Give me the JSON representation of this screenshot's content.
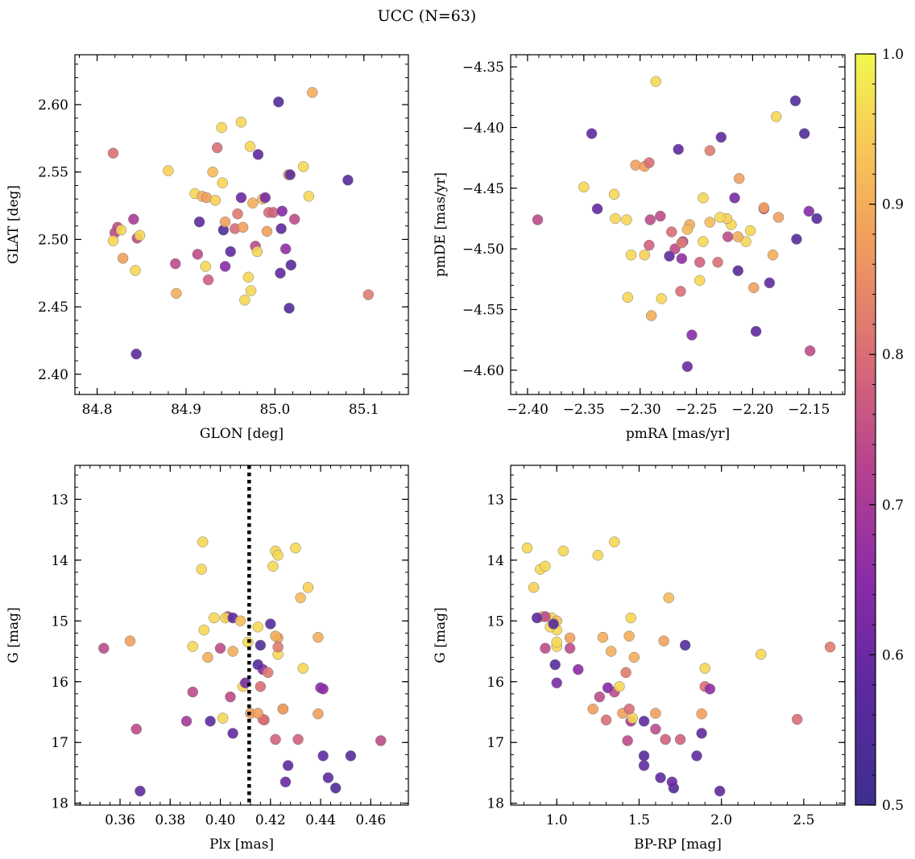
{
  "suptitle": "UCC (N=63)",
  "colorbar": {
    "cmap": "plasma",
    "range": [
      0.5,
      1.0
    ],
    "ticks": [
      0.5,
      0.6,
      0.7,
      0.8,
      0.9,
      1.0
    ],
    "tick_labels": [
      "0.5",
      "0.6",
      "0.7",
      "0.8",
      "0.9",
      "1.0"
    ]
  },
  "stars": [
    {
      "glon": 84.818,
      "glat": 2.564,
      "pmra": -2.272,
      "pmde": -4.486,
      "plx": 0.4175,
      "g": 16.63,
      "bprp": 1.3,
      "p": 0.8
    },
    {
      "glon": 84.82,
      "glat": 2.505,
      "pmra": -2.391,
      "pmde": -4.476,
      "plx": 0.3535,
      "g": 15.45,
      "bprp": 0.93,
      "p": 0.74
    },
    {
      "glon": 84.823,
      "glat": 2.509,
      "pmra": -2.19,
      "pmde": -4.467,
      "plx": 0.3665,
      "g": 16.78,
      "bprp": 1.6,
      "p": 0.74
    },
    {
      "glon": 84.818,
      "glat": 2.499,
      "pmra": -2.308,
      "pmde": -4.505,
      "plx": 0.3935,
      "g": 15.15,
      "bprp": 1.0,
      "p": 0.96
    },
    {
      "glon": 84.827,
      "glat": 2.507,
      "pmra": -2.322,
      "pmde": -4.475,
      "plx": 0.3975,
      "g": 14.95,
      "bprp": 0.97,
      "p": 0.96
    },
    {
      "glon": 84.829,
      "glat": 2.486,
      "pmra": -2.177,
      "pmde": -4.474,
      "plx": 0.364,
      "g": 15.33,
      "bprp": 1.65,
      "p": 0.88
    },
    {
      "glon": 84.841,
      "glat": 2.515,
      "pmra": -2.262,
      "pmde": -4.494,
      "plx": 0.3865,
      "g": 16.65,
      "bprp": 1.45,
      "p": 0.7
    },
    {
      "glon": 84.843,
      "glat": 2.477,
      "pmra": -2.219,
      "pmde": -4.48,
      "plx": 0.3925,
      "g": 14.15,
      "bprp": 0.9,
      "p": 0.96
    },
    {
      "glon": 84.845,
      "glat": 2.501,
      "pmra": -2.291,
      "pmde": -4.476,
      "plx": 0.4,
      "g": 15.45,
      "bprp": 1.08,
      "p": 0.74
    },
    {
      "glon": 84.848,
      "glat": 2.503,
      "pmra": -2.202,
      "pmde": -4.485,
      "plx": 0.401,
      "g": 16.6,
      "bprp": 1.46,
      "p": 0.96
    },
    {
      "glon": 84.844,
      "glat": 2.415,
      "pmra": -2.338,
      "pmde": -4.467,
      "plx": 0.368,
      "g": 17.8,
      "bprp": 1.99,
      "p": 0.58
    },
    {
      "glon": 84.88,
      "glat": 2.551,
      "pmra": -2.223,
      "pmde": -4.475,
      "plx": 0.403,
      "g": 14.93,
      "bprp": 0.91,
      "p": 0.95
    },
    {
      "glon": 84.888,
      "glat": 2.482,
      "pmra": -2.222,
      "pmde": -4.49,
      "plx": 0.404,
      "g": 16.25,
      "bprp": 1.26,
      "p": 0.74
    },
    {
      "glon": 84.889,
      "glat": 2.46,
      "pmra": -2.182,
      "pmde": -4.505,
      "plx": 0.395,
      "g": 15.6,
      "bprp": 1.47,
      "p": 0.9
    },
    {
      "glon": 84.91,
      "glat": 2.534,
      "pmra": -2.244,
      "pmde": -4.458,
      "plx": 0.389,
      "g": 15.42,
      "bprp": 1.0,
      "p": 0.96
    },
    {
      "glon": 84.913,
      "glat": 2.489,
      "pmra": -2.269,
      "pmde": -4.5,
      "plx": 0.389,
      "g": 16.17,
      "bprp": 1.35,
      "p": 0.74
    },
    {
      "glon": 84.915,
      "glat": 2.513,
      "pmra": -2.185,
      "pmde": -4.528,
      "plx": 0.396,
      "g": 16.65,
      "bprp": 1.53,
      "p": 0.58
    },
    {
      "glon": 84.918,
      "glat": 2.532,
      "pmra": -2.256,
      "pmde": -4.48,
      "plx": 0.405,
      "g": 15.5,
      "bprp": 1.33,
      "p": 0.9
    },
    {
      "glon": 84.922,
      "glat": 2.48,
      "pmra": -2.312,
      "pmde": -4.476,
      "plx": 0.409,
      "g": 16.08,
      "bprp": 1.38,
      "p": 0.96
    },
    {
      "glon": 84.923,
      "glat": 2.531,
      "pmra": -2.199,
      "pmde": -4.532,
      "plx": 0.412,
      "g": 16.52,
      "bprp": 1.4,
      "p": 0.88
    },
    {
      "glon": 84.925,
      "glat": 2.47,
      "pmra": -2.247,
      "pmde": -4.511,
      "plx": 0.422,
      "g": 16.95,
      "bprp": 1.66,
      "p": 0.78
    },
    {
      "glon": 84.93,
      "glat": 2.55,
      "pmra": -2.258,
      "pmde": -4.484,
      "plx": 0.432,
      "g": 14.62,
      "bprp": 1.68,
      "p": 0.92
    },
    {
      "glon": 84.933,
      "glat": 2.529,
      "pmra": -2.296,
      "pmde": -4.505,
      "plx": 0.435,
      "g": 14.45,
      "bprp": 0.86,
      "p": 0.95
    },
    {
      "glon": 84.935,
      "glat": 2.568,
      "pmra": -2.264,
      "pmde": -4.535,
      "plx": 0.425,
      "g": 16.45,
      "bprp": 1.44,
      "p": 0.8
    },
    {
      "glon": 84.94,
      "glat": 2.583,
      "pmra": -2.281,
      "pmde": -4.541,
      "plx": 0.415,
      "g": 15.1,
      "bprp": 0.96,
      "p": 0.96
    },
    {
      "glon": 84.941,
      "glat": 2.542,
      "pmra": -2.35,
      "pmde": -4.449,
      "plx": 0.393,
      "g": 13.7,
      "bprp": 1.35,
      "p": 0.96
    },
    {
      "glon": 84.942,
      "glat": 2.507,
      "pmra": -2.162,
      "pmde": -4.378,
      "plx": 0.416,
      "g": 15.4,
      "bprp": 1.78,
      "p": 0.55
    },
    {
      "glon": 84.944,
      "glat": 2.513,
      "pmra": -2.304,
      "pmde": -4.431,
      "plx": 0.423,
      "g": 15.28,
      "bprp": 1.08,
      "p": 0.88
    },
    {
      "glon": 84.944,
      "glat": 2.48,
      "pmra": -2.254,
      "pmde": -4.571,
      "plx": 0.417,
      "g": 15.8,
      "bprp": 1.13,
      "p": 0.65
    },
    {
      "glon": 84.95,
      "glat": 2.491,
      "pmra": -2.274,
      "pmde": -4.506,
      "plx": 0.427,
      "g": 17.38,
      "bprp": 1.53,
      "p": 0.58
    },
    {
      "glon": 84.955,
      "glat": 2.508,
      "pmra": -2.231,
      "pmde": -4.511,
      "plx": 0.417,
      "g": 16.62,
      "bprp": 2.46,
      "p": 0.8
    },
    {
      "glon": 84.958,
      "glat": 2.519,
      "pmra": -2.263,
      "pmde": -4.495,
      "plx": 0.419,
      "g": 15.85,
      "bprp": 1.42,
      "p": 0.82
    },
    {
      "glon": 84.962,
      "glat": 2.587,
      "pmra": -2.247,
      "pmde": -4.526,
      "plx": 0.411,
      "g": 15.35,
      "bprp": 1.0,
      "p": 0.96
    },
    {
      "glon": 84.964,
      "glat": 2.509,
      "pmra": -2.212,
      "pmde": -4.442,
      "plx": 0.425,
      "g": 16.45,
      "bprp": 1.22,
      "p": 0.88
    },
    {
      "glon": 84.966,
      "glat": 2.455,
      "pmra": -2.286,
      "pmde": -4.362,
      "plx": 0.422,
      "g": 13.85,
      "bprp": 1.04,
      "p": 0.96
    },
    {
      "glon": 84.97,
      "glat": 2.472,
      "pmra": -2.311,
      "pmde": -4.54,
      "plx": 0.43,
      "g": 13.8,
      "bprp": 0.82,
      "p": 0.96
    },
    {
      "glon": 84.972,
      "glat": 2.569,
      "pmra": -2.179,
      "pmde": -4.391,
      "plx": 0.423,
      "g": 13.92,
      "bprp": 1.25,
      "p": 0.96
    },
    {
      "glon": 84.973,
      "glat": 2.462,
      "pmra": -2.323,
      "pmde": -4.455,
      "plx": 0.421,
      "g": 14.1,
      "bprp": 0.93,
      "p": 0.96
    },
    {
      "glon": 84.975,
      "glat": 2.527,
      "pmra": -2.29,
      "pmde": -4.555,
      "plx": 0.422,
      "g": 15.25,
      "bprp": 1.44,
      "p": 0.9
    },
    {
      "glon": 84.978,
      "glat": 2.495,
      "pmra": -2.282,
      "pmde": -4.473,
      "plx": 0.403,
      "g": 14.93,
      "bprp": 0.93,
      "p": 0.74
    },
    {
      "glon": 84.98,
      "glat": 2.491,
      "pmra": -2.206,
      "pmde": -4.494,
      "plx": 0.402,
      "g": 14.95,
      "bprp": 1.45,
      "p": 0.96
    },
    {
      "glon": 84.981,
      "glat": 2.563,
      "pmra": -2.228,
      "pmde": -4.408,
      "plx": 0.405,
      "g": 14.95,
      "bprp": 0.88,
      "p": 0.58
    },
    {
      "glon": 84.986,
      "glat": 2.53,
      "pmra": -2.238,
      "pmde": -4.478,
      "plx": 0.408,
      "g": 15.0,
      "bprp": 1.0,
      "p": 0.92
    },
    {
      "glon": 84.989,
      "glat": 2.531,
      "pmra": -2.216,
      "pmde": -4.458,
      "plx": 0.41,
      "g": 16.02,
      "bprp": 1.0,
      "p": 0.62
    },
    {
      "glon": 84.991,
      "glat": 2.506,
      "pmra": -2.296,
      "pmde": -4.432,
      "plx": 0.415,
      "g": 16.52,
      "bprp": 1.6,
      "p": 0.88
    },
    {
      "glon": 84.993,
      "glat": 2.52,
      "pmra": -2.292,
      "pmde": -4.429,
      "plx": 0.416,
      "g": 16.08,
      "bprp": 1.9,
      "p": 0.8
    },
    {
      "glon": 84.998,
      "glat": 2.52,
      "pmra": -2.292,
      "pmde": -4.497,
      "plx": 0.431,
      "g": 16.95,
      "bprp": 1.75,
      "p": 0.78
    },
    {
      "glon": 85.004,
      "glat": 2.602,
      "pmra": -2.213,
      "pmde": -4.518,
      "plx": 0.42,
      "g": 15.05,
      "bprp": 0.98,
      "p": 0.56
    },
    {
      "glon": 85.006,
      "glat": 2.475,
      "pmra": -2.343,
      "pmde": -4.405,
      "plx": 0.441,
      "g": 17.22,
      "bprp": 1.85,
      "p": 0.58
    },
    {
      "glon": 85.007,
      "glat": 2.508,
      "pmra": -2.266,
      "pmde": -4.418,
      "plx": 0.405,
      "g": 16.85,
      "bprp": 1.88,
      "p": 0.58
    },
    {
      "glon": 85.008,
      "glat": 2.521,
      "pmra": -2.15,
      "pmde": -4.469,
      "plx": 0.44,
      "g": 16.1,
      "bprp": 1.31,
      "p": 0.64
    },
    {
      "glon": 85.012,
      "glat": 2.493,
      "pmra": -2.263,
      "pmde": -4.508,
      "plx": 0.441,
      "g": 16.12,
      "bprp": 1.93,
      "p": 0.66
    },
    {
      "glon": 85.015,
      "glat": 2.548,
      "pmra": -2.19,
      "pmde": -4.466,
      "plx": 0.439,
      "g": 16.53,
      "bprp": 1.88,
      "p": 0.88
    },
    {
      "glon": 85.016,
      "glat": 2.449,
      "pmra": -2.154,
      "pmde": -4.405,
      "plx": 0.446,
      "g": 17.75,
      "bprp": 1.71,
      "p": 0.55
    },
    {
      "glon": 85.017,
      "glat": 2.548,
      "pmra": -2.197,
      "pmde": -4.568,
      "plx": 0.443,
      "g": 17.58,
      "bprp": 1.63,
      "p": 0.58
    },
    {
      "glon": 85.018,
      "glat": 2.481,
      "pmra": -2.161,
      "pmde": -4.492,
      "plx": 0.452,
      "g": 17.22,
      "bprp": 1.53,
      "p": 0.56
    },
    {
      "glon": 85.022,
      "glat": 2.515,
      "pmra": -2.149,
      "pmde": -4.584,
      "plx": 0.464,
      "g": 16.97,
      "bprp": 1.43,
      "p": 0.74
    },
    {
      "glon": 85.032,
      "glat": 2.554,
      "pmra": -2.229,
      "pmde": -4.474,
      "plx": 0.423,
      "g": 15.55,
      "bprp": 2.24,
      "p": 0.96
    },
    {
      "glon": 85.038,
      "glat": 2.532,
      "pmra": -2.244,
      "pmde": -4.494,
      "plx": 0.433,
      "g": 15.78,
      "bprp": 1.9,
      "p": 0.96
    },
    {
      "glon": 85.042,
      "glat": 2.609,
      "pmra": -2.213,
      "pmde": -4.49,
      "plx": 0.439,
      "g": 15.27,
      "bprp": 1.28,
      "p": 0.9
    },
    {
      "glon": 85.082,
      "glat": 2.544,
      "pmra": -2.143,
      "pmde": -4.475,
      "plx": 0.415,
      "g": 15.72,
      "bprp": 0.99,
      "p": 0.56
    },
    {
      "glon": 85.105,
      "glat": 2.459,
      "pmra": -2.238,
      "pmde": -4.419,
      "plx": 0.423,
      "g": 15.43,
      "bprp": 2.66,
      "p": 0.82
    },
    {
      "glon": 84.962,
      "glat": 2.531,
      "pmra": -2.258,
      "pmde": -4.597,
      "plx": 0.426,
      "g": 17.65,
      "bprp": 1.7,
      "p": 0.6
    }
  ],
  "chart_data": [
    {
      "type": "scatter",
      "xlabel": "GLON [deg]",
      "ylabel": "GLAT [deg]",
      "xlim": [
        84.775,
        85.15
      ],
      "ylim": [
        2.385,
        2.637
      ],
      "xticks": [
        84.8,
        84.9,
        85.0,
        85.1
      ],
      "xtick_labels": [
        "84.8",
        "84.9",
        "85.0",
        "85.1"
      ],
      "yticks": [
        2.4,
        2.45,
        2.5,
        2.55,
        2.6
      ],
      "ytick_labels": [
        "2.40",
        "2.45",
        "2.50",
        "2.55",
        "2.60"
      ],
      "x_field": "glon",
      "y_field": "glat",
      "color_field": "p"
    },
    {
      "type": "scatter",
      "xlabel": "pmRA [mas/yr]",
      "ylabel": "pmDE [mas/yr]",
      "xlim": [
        -2.415,
        -2.118
      ],
      "ylim": [
        -4.62,
        -4.34
      ],
      "xticks": [
        -2.4,
        -2.35,
        -2.3,
        -2.25,
        -2.2,
        -2.15
      ],
      "xtick_labels": [
        "−2.40",
        "−2.35",
        "−2.30",
        "−2.25",
        "−2.20",
        "−2.15"
      ],
      "yticks": [
        -4.6,
        -4.55,
        -4.5,
        -4.45,
        -4.4,
        -4.35
      ],
      "ytick_labels": [
        "−4.60",
        "−4.55",
        "−4.50",
        "−4.45",
        "−4.40",
        "−4.35"
      ],
      "x_field": "pmra",
      "y_field": "pmde",
      "color_field": "p"
    },
    {
      "type": "scatter",
      "xlabel": "Plx [mas]",
      "ylabel": "G [mag]",
      "xlim": [
        0.342,
        0.475
      ],
      "ylim": [
        18.03,
        12.44
      ],
      "y_inverted": true,
      "xticks": [
        0.36,
        0.38,
        0.4,
        0.42,
        0.44,
        0.46
      ],
      "xtick_labels": [
        "0.36",
        "0.38",
        "0.40",
        "0.42",
        "0.44",
        "0.46"
      ],
      "yticks": [
        13,
        14,
        15,
        16,
        17,
        18
      ],
      "ytick_labels": [
        "13",
        "14",
        "15",
        "16",
        "17",
        "18"
      ],
      "x_field": "plx",
      "y_field": "g",
      "color_field": "p",
      "vline": 0.4115
    },
    {
      "type": "scatter",
      "xlabel": "BP-RP [mag]",
      "ylabel": "G [mag]",
      "xlim": [
        0.72,
        2.75
      ],
      "ylim": [
        18.03,
        12.44
      ],
      "y_inverted": true,
      "xticks": [
        1.0,
        1.5,
        2.0,
        2.5
      ],
      "xtick_labels": [
        "1.0",
        "1.5",
        "2.0",
        "2.5"
      ],
      "yticks": [
        13,
        14,
        15,
        16,
        17,
        18
      ],
      "ytick_labels": [
        "13",
        "14",
        "15",
        "16",
        "17",
        "18"
      ],
      "x_field": "bprp",
      "y_field": "g",
      "color_field": "p"
    }
  ]
}
